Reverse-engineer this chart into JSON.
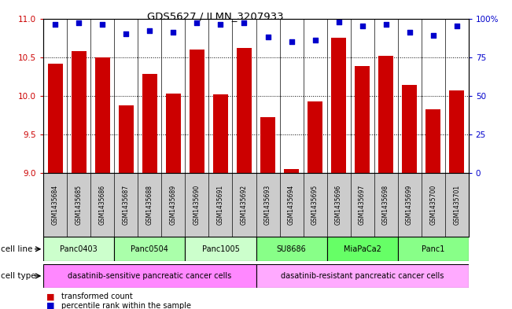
{
  "title": "GDS5627 / ILMN_3207933",
  "samples": [
    "GSM1435684",
    "GSM1435685",
    "GSM1435686",
    "GSM1435687",
    "GSM1435688",
    "GSM1435689",
    "GSM1435690",
    "GSM1435691",
    "GSM1435692",
    "GSM1435693",
    "GSM1435694",
    "GSM1435695",
    "GSM1435696",
    "GSM1435697",
    "GSM1435698",
    "GSM1435699",
    "GSM1435700",
    "GSM1435701"
  ],
  "bar_values": [
    10.42,
    10.58,
    10.5,
    9.88,
    10.28,
    10.03,
    10.6,
    10.02,
    10.62,
    9.72,
    9.05,
    9.93,
    10.75,
    10.38,
    10.52,
    10.14,
    9.83,
    10.07
  ],
  "percentile_values": [
    96,
    97,
    96,
    90,
    92,
    91,
    97,
    96,
    97,
    88,
    85,
    86,
    98,
    95,
    96,
    91,
    89,
    95
  ],
  "bar_color": "#cc0000",
  "dot_color": "#0000cc",
  "ylim_left": [
    9,
    11
  ],
  "ylim_right": [
    0,
    100
  ],
  "yticks_left": [
    9,
    9.5,
    10,
    10.5,
    11
  ],
  "yticks_right": [
    0,
    25,
    50,
    75,
    100
  ],
  "cell_lines": [
    {
      "label": "Panc0403",
      "start": 0,
      "end": 3
    },
    {
      "label": "Panc0504",
      "start": 3,
      "end": 6
    },
    {
      "label": "Panc1005",
      "start": 6,
      "end": 9
    },
    {
      "label": "SU8686",
      "start": 9,
      "end": 12
    },
    {
      "label": "MiaPaCa2",
      "start": 12,
      "end": 15
    },
    {
      "label": "Panc1",
      "start": 15,
      "end": 18
    }
  ],
  "cell_line_colors": [
    "#ccffcc",
    "#aaffaa",
    "#ccffcc",
    "#88ff88",
    "#66ff66",
    "#88ff88"
  ],
  "cell_types": [
    {
      "label": "dasatinib-sensitive pancreatic cancer cells",
      "start": 0,
      "end": 9
    },
    {
      "label": "dasatinib-resistant pancreatic cancer cells",
      "start": 9,
      "end": 18
    }
  ],
  "cell_type_colors": [
    "#ff88ff",
    "#ffaaff"
  ],
  "legend_items": [
    {
      "label": "transformed count",
      "color": "#cc0000"
    },
    {
      "label": "percentile rank within the sample",
      "color": "#0000cc"
    }
  ],
  "bar_width": 0.65,
  "tick_label_color": "#444444",
  "sample_bg_color": "#cccccc"
}
